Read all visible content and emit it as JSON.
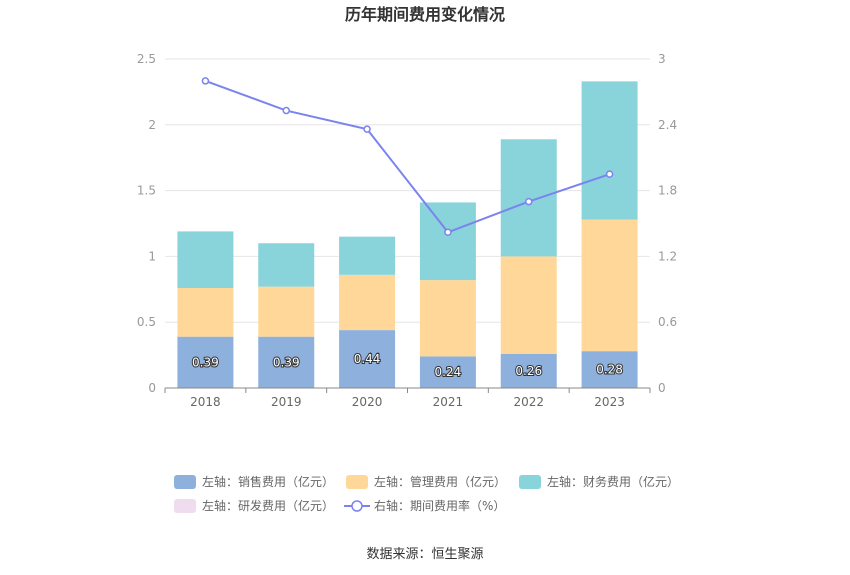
{
  "chart_data": {
    "type": "bar",
    "title": "历年期间费用变化情况",
    "categories": [
      "2018",
      "2019",
      "2020",
      "2021",
      "2022",
      "2023"
    ],
    "stacked": true,
    "left_axis": {
      "ylim": [
        0,
        2.5
      ],
      "ticks": [
        "0",
        "0.5",
        "1",
        "1.5",
        "2",
        "2.5"
      ]
    },
    "right_axis": {
      "ylim": [
        0,
        3
      ],
      "ticks": [
        "0",
        "0.6",
        "1.2",
        "1.8",
        "2.4",
        "3"
      ]
    },
    "series": [
      {
        "name": "左轴：销售费用（亿元）",
        "type": "bar",
        "axis": "left",
        "color": "#8eb0dd",
        "values": [
          0.39,
          0.39,
          0.44,
          0.24,
          0.26,
          0.28
        ],
        "labels": [
          "0.39",
          "0.39",
          "0.44",
          "0.24",
          "0.26",
          "0.28"
        ]
      },
      {
        "name": "左轴：管理费用（亿元）",
        "type": "bar",
        "axis": "left",
        "color": "#ffd899",
        "values": [
          0.37,
          0.38,
          0.42,
          0.58,
          0.74,
          1.0
        ]
      },
      {
        "name": "左轴：财务费用（亿元）",
        "type": "bar",
        "axis": "left",
        "color": "#88d4da",
        "values": [
          0.43,
          0.33,
          0.29,
          0.59,
          0.89,
          1.05
        ]
      },
      {
        "name": "左轴：研发费用（亿元）",
        "type": "bar",
        "axis": "left",
        "color": "#f0dcef",
        "values": [
          0,
          0,
          0,
          0,
          0,
          0
        ]
      },
      {
        "name": "右轴：期间费用率（%）",
        "type": "line",
        "axis": "right",
        "color": "#7b83ef",
        "values": [
          2.8,
          2.53,
          2.36,
          1.42,
          1.7,
          1.95
        ]
      }
    ],
    "legend_position": "bottom"
  },
  "source": "数据来源：恒生聚源"
}
